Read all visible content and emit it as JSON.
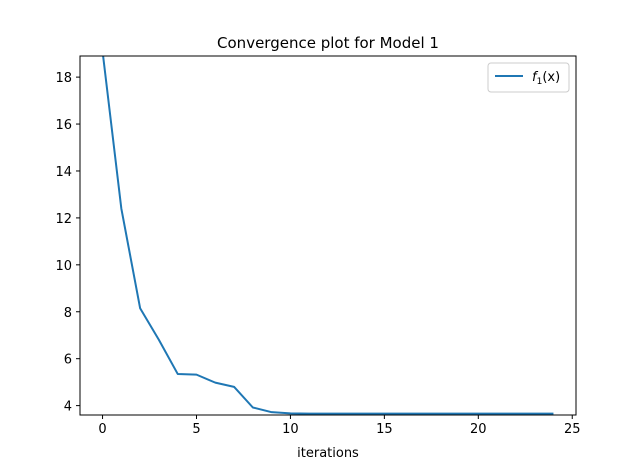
{
  "chart_data": {
    "type": "line",
    "title": "Convergence plot for Model 1",
    "xlabel": "iterations",
    "ylabel": "",
    "xlim": [
      -1.2,
      25.2
    ],
    "ylim": [
      3.6,
      18.9
    ],
    "xticks": [
      0,
      5,
      10,
      15,
      20,
      25
    ],
    "yticks": [
      4,
      6,
      8,
      10,
      12,
      14,
      16,
      18
    ],
    "grid": false,
    "legend_position": "top-right",
    "series": [
      {
        "name": "f1(x)",
        "legend_main": "f",
        "legend_sub": "1",
        "legend_rest": "(x)",
        "color": "#1f77b4",
        "x": [
          0,
          1,
          2,
          3,
          4,
          5,
          6,
          7,
          8,
          9,
          10,
          11,
          12,
          13,
          14,
          15,
          16,
          17,
          18,
          19,
          20,
          21,
          22,
          23,
          24
        ],
        "y": [
          19.1,
          12.4,
          8.15,
          6.8,
          5.35,
          5.32,
          4.98,
          4.8,
          3.92,
          3.72,
          3.67,
          3.66,
          3.66,
          3.66,
          3.66,
          3.66,
          3.66,
          3.66,
          3.66,
          3.66,
          3.66,
          3.66,
          3.66,
          3.66,
          3.66
        ]
      }
    ]
  }
}
